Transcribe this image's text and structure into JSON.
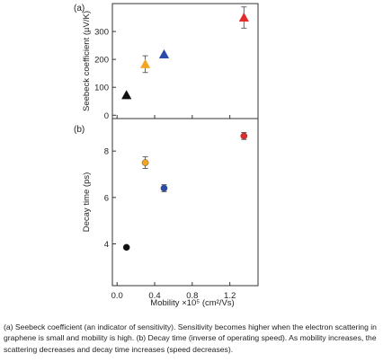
{
  "chart_data": [
    {
      "type": "scatter",
      "panel_label": "(a)",
      "ylabel": "Seebeck coefficient (µV/K)",
      "xlim": [
        -0.05,
        1.5
      ],
      "ylim": [
        -12,
        400
      ],
      "yticks": [
        0,
        100,
        200,
        300
      ],
      "grid": false,
      "points": [
        {
          "x": 0.1,
          "y": 72,
          "err": 0,
          "color": "#111111",
          "marker": "triangle"
        },
        {
          "x": 0.3,
          "y": 183,
          "err": 30,
          "color": "#f4a522",
          "marker": "triangle"
        },
        {
          "x": 0.5,
          "y": 218,
          "err": 0,
          "color": "#2a4aa8",
          "marker": "triangle"
        },
        {
          "x": 1.35,
          "y": 350,
          "err": 38,
          "color": "#e32c2a",
          "marker": "triangle"
        }
      ]
    },
    {
      "type": "scatter",
      "panel_label": "(b)",
      "ylabel": "Decay time (ps)",
      "xlabel": "Mobility ×10⁵ (cm²/Vs)",
      "xlim": [
        -0.05,
        1.5
      ],
      "ylim": [
        2.2,
        9.4
      ],
      "xticks": [
        0.0,
        0.4,
        0.8,
        1.2
      ],
      "xtick_labels": [
        "0.0",
        "0.4",
        "0.8",
        "1.2"
      ],
      "yticks": [
        4,
        6,
        8
      ],
      "grid": false,
      "points": [
        {
          "x": 0.1,
          "y": 3.85,
          "err": 0,
          "color": "#111111",
          "marker": "circle"
        },
        {
          "x": 0.3,
          "y": 7.5,
          "err": 0.25,
          "color": "#f4a522",
          "marker": "circle"
        },
        {
          "x": 0.5,
          "y": 6.4,
          "err": 0.15,
          "color": "#2a4aa8",
          "marker": "circle"
        },
        {
          "x": 1.35,
          "y": 8.65,
          "err": 0.15,
          "color": "#e32c2a",
          "marker": "circle"
        }
      ]
    }
  ],
  "caption": "(a) Seebeck coefficient (an indicator of sensitivity). Sensitivity becomes higher when the electron scattering in graphene is small and mobility is high. (b) Decay time (inverse of operating speed). As mobility increases, the scattering decreases and decay time increases (speed decreases)."
}
